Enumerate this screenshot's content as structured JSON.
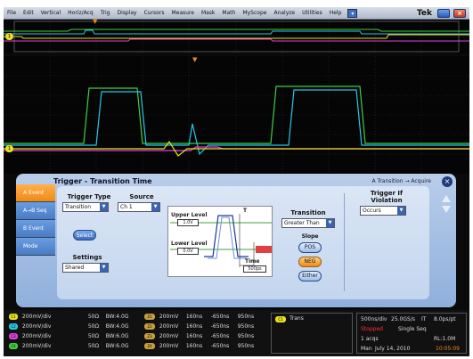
{
  "menu": {
    "items": [
      "File",
      "Edit",
      "Vertical",
      "Horiz/Acq",
      "Trig",
      "Display",
      "Cursors",
      "Measure",
      "Mask",
      "Math",
      "MyScope",
      "Analyze",
      "Utilities",
      "Help"
    ],
    "help_arrow": "▾",
    "brand": "Tek",
    "close_glyph": "×"
  },
  "markers": {
    "channel_1": "1",
    "trigger_pointer": "▼"
  },
  "dialog": {
    "title": "Trigger - Transition Time",
    "breadcrumb": "A Transition → Acquire",
    "close_glyph": "×",
    "side_tabs": [
      "A Event",
      "A→B Seq",
      "B Event",
      "Mode"
    ],
    "trigger_type": {
      "label": "Trigger Type",
      "value": "Transition"
    },
    "source": {
      "label": "Source",
      "value": "Ch 1"
    },
    "select_button": "Select",
    "settings": {
      "label": "Settings",
      "value": "Shared"
    },
    "diagram": {
      "upper_level_label": "Upper Level",
      "upper_level_value": "1.0V",
      "lower_level_label": "Lower Level",
      "lower_level_value": "0.0V",
      "time_label": "Time",
      "time_value": "500ps",
      "t_marker": "T"
    },
    "transition": {
      "label": "Transition",
      "value": "Greater Than"
    },
    "slope": {
      "label": "Slope",
      "options": [
        "POS",
        "NEG",
        "Either"
      ],
      "selected": "NEG"
    },
    "violation": {
      "label_line1": "Trigger If",
      "label_line2": "Violation",
      "value": "Occurs"
    }
  },
  "channels": [
    {
      "badge": "C1",
      "scale": "200mV/div",
      "impedance": "50Ω",
      "bandwidth": "BW:4.0G",
      "color": "#e8e020"
    },
    {
      "badge": "C2",
      "scale": "200mV/div",
      "impedance": "50Ω",
      "bandwidth": "BW:4.0G",
      "color": "#28c8e8"
    },
    {
      "badge": "C3",
      "scale": "200mV/div",
      "impedance": "50Ω",
      "bandwidth": "BW:6.0G",
      "color": "#e040e0"
    },
    {
      "badge": "C4",
      "scale": "200mV/div",
      "impedance": "50Ω",
      "bandwidth": "BW:6.0G",
      "color": "#40d040"
    }
  ],
  "math": [
    {
      "badge": "Z1",
      "scale": "200mV",
      "time": "160ns",
      "offset": "-650ns",
      "span": "950ns"
    },
    {
      "badge": "Z2",
      "scale": "200mV",
      "time": "160ns",
      "offset": "-650ns",
      "span": "950ns"
    },
    {
      "badge": "Z3",
      "scale": "200mV",
      "time": "160ns",
      "offset": "-650ns",
      "span": "950ns"
    },
    {
      "badge": "Z4",
      "scale": "200mV",
      "time": "160ns",
      "offset": "-650ns",
      "span": "950ns"
    }
  ],
  "trigger_status": {
    "badge": "C1",
    "text": "Trans"
  },
  "acquisition": {
    "horizontal": "500ns/div",
    "sample_rate": "25.0GS/s",
    "interval": "IT",
    "per_point": "8.0ps/pt",
    "state": "Stopped",
    "mode": "Single Seq",
    "acqs": "1 acqs",
    "record_length": "RL:1.0M",
    "user": "Man",
    "date": "July 14, 2010",
    "time": "10:05:09"
  },
  "colors": {
    "ch1": "#e8e020",
    "ch2": "#28c8e8",
    "ch3": "#e040e0",
    "ch4": "#40d040",
    "accent_orange": "#f08a14",
    "stopped_red": "#ff3030"
  }
}
